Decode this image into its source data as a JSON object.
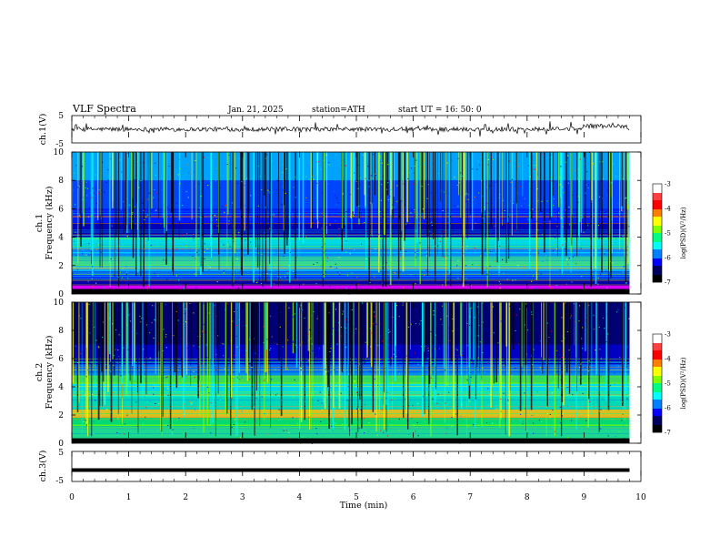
{
  "header": {
    "title": "VLF  Spectra",
    "date": "Jan. 21, 2025",
    "station": "station=ATH",
    "start": "start  UT  =   16: 50: 0"
  },
  "chart_data": [
    {
      "type": "line",
      "panel": "ch1-waveform",
      "ylabel": "ch.1(V)",
      "ylim": [
        -5,
        5
      ],
      "y_ticks": [
        "5",
        "-5"
      ],
      "series": [
        {
          "color": "#000000",
          "note_level": 0
        }
      ]
    },
    {
      "type": "heatmap",
      "panel": "ch1-spectrogram",
      "ylabel_top": "ch.1",
      "ylabel": "Frequency  (kHz)",
      "ylim": [
        0,
        10
      ],
      "y_ticks": [
        "0",
        "2",
        "4",
        "6",
        "8",
        "10"
      ],
      "colorbar": {
        "label": "log(PSD)(V²/Hz)",
        "range": [
          -7,
          -3
        ],
        "ticks": [
          "-3",
          "-4",
          "-5",
          "-6",
          "-7"
        ]
      }
    },
    {
      "type": "heatmap",
      "panel": "ch2-spectrogram",
      "ylabel_top": "ch.2",
      "ylabel": "Frequency  (kHz)",
      "ylim": [
        0,
        10
      ],
      "y_ticks": [
        "0",
        "2",
        "4",
        "6",
        "8",
        "10"
      ],
      "colorbar": {
        "label": "log(PSD)(V²/Hz)",
        "range": [
          -7,
          -3
        ],
        "ticks": [
          "-3",
          "-4",
          "-5",
          "-6",
          "-7"
        ]
      }
    },
    {
      "type": "line",
      "panel": "ch3-waveform",
      "ylabel": "ch.3(V)",
      "ylim": [
        -5,
        5
      ],
      "y_ticks": [
        "5",
        "-5"
      ],
      "series": [
        {
          "color": "#000000",
          "level": -1.2
        }
      ]
    }
  ],
  "xaxis": {
    "label": "Time  (min)",
    "xlim": [
      0,
      10
    ],
    "ticks": [
      "0",
      "1",
      "2",
      "3",
      "4",
      "5",
      "6",
      "7",
      "8",
      "9",
      "10"
    ],
    "data_end": 9.8
  },
  "colors": {
    "colormap": [
      "#000000",
      "#00007a",
      "#0000ff",
      "#0080ff",
      "#00ffff",
      "#00ff80",
      "#80ff00",
      "#ffff00",
      "#ff8000",
      "#ff0000",
      "#ffffff"
    ]
  }
}
